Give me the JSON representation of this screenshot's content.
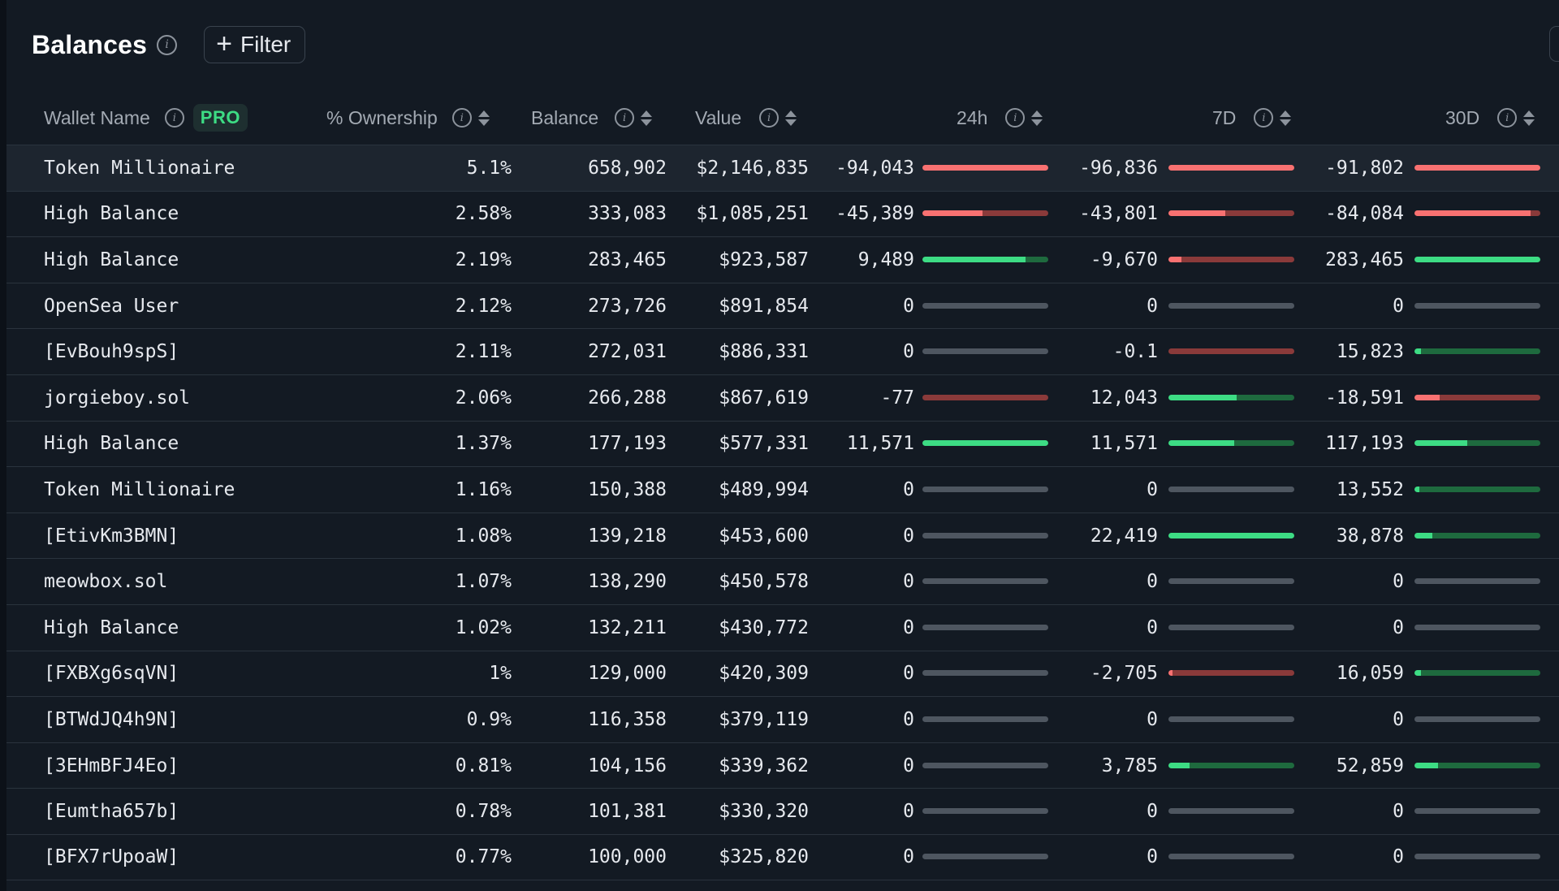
{
  "header": {
    "title": "Balances",
    "filter_label": "Filter"
  },
  "columns": {
    "wallet": "Wallet Name",
    "pro": "PRO",
    "ownership": "% Ownership",
    "balance": "Balance",
    "value": "Value",
    "d24h": "24h",
    "d7d": "7D",
    "d30d": "30D"
  },
  "colors": {
    "neg_strong": "#f87171",
    "neg_track": "#8a3a3a",
    "pos_strong": "#3ddc84",
    "pos_track": "#1e6a3e",
    "neutral": "#4e5660"
  },
  "rows": [
    {
      "name": "Token Millionaire",
      "own": "5.1%",
      "bal": "658,902",
      "val": "$2,146,835",
      "h24": {
        "v": "-94,043",
        "s": "neg",
        "f": 1
      },
      "d7": {
        "v": "-96,836",
        "s": "neg",
        "f": 1
      },
      "d30": {
        "v": "-91,802",
        "s": "neg",
        "f": 1
      }
    },
    {
      "name": "High Balance",
      "own": "2.58%",
      "bal": "333,083",
      "val": "$1,085,251",
      "h24": {
        "v": "-45,389",
        "s": "neg",
        "f": 0.48
      },
      "d7": {
        "v": "-43,801",
        "s": "neg",
        "f": 0.45
      },
      "d30": {
        "v": "-84,084",
        "s": "neg",
        "f": 0.92
      }
    },
    {
      "name": "High Balance",
      "own": "2.19%",
      "bal": "283,465",
      "val": "$923,587",
      "h24": {
        "v": "9,489",
        "s": "pos",
        "f": 0.82
      },
      "d7": {
        "v": "-9,670",
        "s": "neg",
        "f": 0.1
      },
      "d30": {
        "v": "283,465",
        "s": "pos",
        "f": 1
      }
    },
    {
      "name": "OpenSea User",
      "own": "2.12%",
      "bal": "273,726",
      "val": "$891,854",
      "h24": {
        "v": "0",
        "s": "zero",
        "f": 0
      },
      "d7": {
        "v": "0",
        "s": "zero",
        "f": 0
      },
      "d30": {
        "v": "0",
        "s": "zero",
        "f": 0
      }
    },
    {
      "name": "[EvBouh9spS]",
      "own": "2.11%",
      "bal": "272,031",
      "val": "$886,331",
      "h24": {
        "v": "0",
        "s": "zero",
        "f": 0
      },
      "d7": {
        "v": "-0.1",
        "s": "neg",
        "f": 0
      },
      "d30": {
        "v": "15,823",
        "s": "pos",
        "f": 0.05
      }
    },
    {
      "name": "jorgieboy.sol",
      "own": "2.06%",
      "bal": "266,288",
      "val": "$867,619",
      "h24": {
        "v": "-77",
        "s": "neg",
        "f": 0
      },
      "d7": {
        "v": "12,043",
        "s": "pos",
        "f": 0.54
      },
      "d30": {
        "v": "-18,591",
        "s": "neg",
        "f": 0.2
      }
    },
    {
      "name": "High Balance",
      "own": "1.37%",
      "bal": "177,193",
      "val": "$577,331",
      "h24": {
        "v": "11,571",
        "s": "pos",
        "f": 1
      },
      "d7": {
        "v": "11,571",
        "s": "pos",
        "f": 0.52
      },
      "d30": {
        "v": "117,193",
        "s": "pos",
        "f": 0.42
      }
    },
    {
      "name": "Token Millionaire",
      "own": "1.16%",
      "bal": "150,388",
      "val": "$489,994",
      "h24": {
        "v": "0",
        "s": "zero",
        "f": 0
      },
      "d7": {
        "v": "0",
        "s": "zero",
        "f": 0
      },
      "d30": {
        "v": "13,552",
        "s": "pos",
        "f": 0.04
      }
    },
    {
      "name": "[EtivKm3BMN]",
      "own": "1.08%",
      "bal": "139,218",
      "val": "$453,600",
      "h24": {
        "v": "0",
        "s": "zero",
        "f": 0
      },
      "d7": {
        "v": "22,419",
        "s": "pos",
        "f": 1
      },
      "d30": {
        "v": "38,878",
        "s": "pos",
        "f": 0.14
      }
    },
    {
      "name": "meowbox.sol",
      "own": "1.07%",
      "bal": "138,290",
      "val": "$450,578",
      "h24": {
        "v": "0",
        "s": "zero",
        "f": 0
      },
      "d7": {
        "v": "0",
        "s": "zero",
        "f": 0
      },
      "d30": {
        "v": "0",
        "s": "zero",
        "f": 0
      }
    },
    {
      "name": "High Balance",
      "own": "1.02%",
      "bal": "132,211",
      "val": "$430,772",
      "h24": {
        "v": "0",
        "s": "zero",
        "f": 0
      },
      "d7": {
        "v": "0",
        "s": "zero",
        "f": 0
      },
      "d30": {
        "v": "0",
        "s": "zero",
        "f": 0
      }
    },
    {
      "name": "[FXBXg6sqVN]",
      "own": "1%",
      "bal": "129,000",
      "val": "$420,309",
      "h24": {
        "v": "0",
        "s": "zero",
        "f": 0
      },
      "d7": {
        "v": "-2,705",
        "s": "neg",
        "f": 0.03
      },
      "d30": {
        "v": "16,059",
        "s": "pos",
        "f": 0.05
      }
    },
    {
      "name": "[BTWdJQ4h9N]",
      "own": "0.9%",
      "bal": "116,358",
      "val": "$379,119",
      "h24": {
        "v": "0",
        "s": "zero",
        "f": 0
      },
      "d7": {
        "v": "0",
        "s": "zero",
        "f": 0
      },
      "d30": {
        "v": "0",
        "s": "zero",
        "f": 0
      }
    },
    {
      "name": "[3EHmBFJ4Eo]",
      "own": "0.81%",
      "bal": "104,156",
      "val": "$339,362",
      "h24": {
        "v": "0",
        "s": "zero",
        "f": 0
      },
      "d7": {
        "v": "3,785",
        "s": "pos",
        "f": 0.17
      },
      "d30": {
        "v": "52,859",
        "s": "pos",
        "f": 0.19
      }
    },
    {
      "name": "[Eumtha657b]",
      "own": "0.78%",
      "bal": "101,381",
      "val": "$330,320",
      "h24": {
        "v": "0",
        "s": "zero",
        "f": 0
      },
      "d7": {
        "v": "0",
        "s": "zero",
        "f": 0
      },
      "d30": {
        "v": "0",
        "s": "zero",
        "f": 0
      }
    },
    {
      "name": "[BFX7rUpoaW]",
      "own": "0.77%",
      "bal": "100,000",
      "val": "$325,820",
      "h24": {
        "v": "0",
        "s": "zero",
        "f": 0
      },
      "d7": {
        "v": "0",
        "s": "zero",
        "f": 0
      },
      "d30": {
        "v": "0",
        "s": "zero",
        "f": 0
      }
    }
  ]
}
